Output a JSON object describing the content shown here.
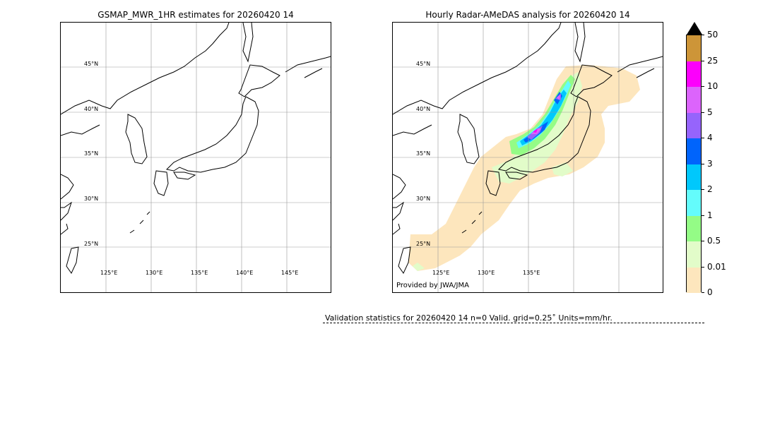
{
  "left_panel": {
    "title": "GSMAP_MWR_1HR estimates for 20260420 14",
    "lat_labels": [
      "45°N",
      "40°N",
      "35°N",
      "30°N",
      "25°N"
    ],
    "lon_labels": [
      "125°E",
      "130°E",
      "135°E",
      "140°E",
      "145°E"
    ]
  },
  "right_panel": {
    "title": "Hourly Radar-AMeDAS analysis for 20260420 14",
    "lat_labels": [
      "45°N",
      "40°N",
      "35°N",
      "30°N",
      "25°N"
    ],
    "lon_labels": [
      "125°E",
      "130°E",
      "135°E"
    ],
    "credit": "Provided by JWA/JMA"
  },
  "colorbar": {
    "units": "mm/hr",
    "levels": [
      "0",
      "0.01",
      "0.5",
      "1",
      "2",
      "3",
      "4",
      "5",
      "10",
      "25",
      "50"
    ],
    "colors": [
      "#fde6bd",
      "#e2fcc9",
      "#94fc86",
      "#64fcfc",
      "#00c8fc",
      "#0064fc",
      "#9664fc",
      "#dc64fc",
      "#fc00fc",
      "#cd9538"
    ],
    "extend_color": "#000000"
  },
  "validation": {
    "text": "Validation statistics for 20260420 14  n=0 Valid. grid=0.25˚ Units=mm/hr."
  }
}
